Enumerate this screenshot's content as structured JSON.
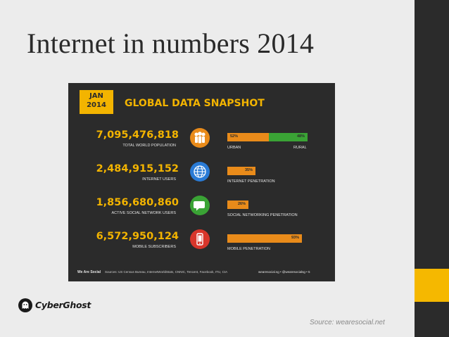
{
  "slide": {
    "title": "Internet in numbers 2014",
    "source": "Source: wearesocial.net",
    "logo_text": "CyberGhost"
  },
  "snapshot": {
    "date_badge": "JAN\n2014",
    "title": "GLOBAL DATA SNAPSHOT",
    "stats": [
      {
        "value": "7,095,476,818",
        "label": "TOTAL WORLD POPULATION",
        "icon": "people-icon",
        "icon_color": "#e98b1a",
        "bar_left_pct": "52%",
        "bar_right_pct": "48%",
        "bar_left_label": "URBAN",
        "bar_right_label": "RURAL"
      },
      {
        "value": "2,484,915,152",
        "label": "INTERNET USERS",
        "icon": "globe-icon",
        "icon_color": "#2a7bd6",
        "bar_pct": "35%",
        "bar_label": "INTERNET PENETRATION"
      },
      {
        "value": "1,856,680,860",
        "label": "ACTIVE SOCIAL NETWORK USERS",
        "icon": "chat-icon",
        "icon_color": "#3aa335",
        "bar_pct": "26%",
        "bar_label": "SOCIAL NETWORKING PENETRATION"
      },
      {
        "value": "6,572,950,124",
        "label": "MOBILE SUBSCRIBERS",
        "icon": "mobile-phone-icon",
        "icon_color": "#d8362b",
        "bar_pct": "93%",
        "bar_label": "MOBILE PENETRATION"
      }
    ],
    "bar_values": {
      "urban": 0.52,
      "rural": 0.48,
      "internet": 0.35,
      "social": 0.26,
      "mobile": 0.93
    },
    "footer_brand": "We Are Social",
    "footer_sources": "Sources: US Census Bureau, InternetWorldStats, CNNIC, Tencent, Facebook, ITU, CIA",
    "footer_right": "wearesocial.sg  •  @wearesocialsg  •  5"
  },
  "colors": {
    "accent_yellow": "#f5b800",
    "bar_orange": "#e98b1a",
    "bar_green": "#3aa335",
    "dark_panel": "#2b2b2b"
  }
}
